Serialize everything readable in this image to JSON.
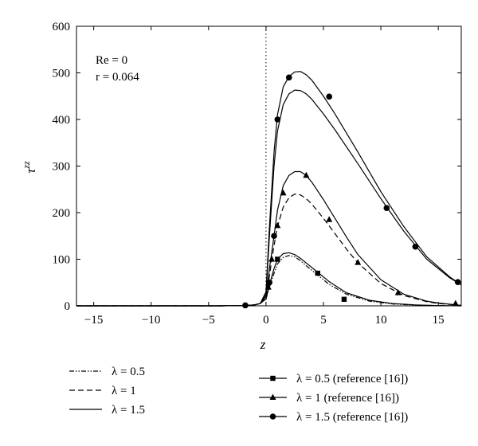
{
  "chart_data": {
    "type": "line",
    "xlabel": "z",
    "ylabel": "τ",
    "ylabel_superscript": "zz",
    "xlim": [
      -16.5,
      17
    ],
    "ylim": [
      0,
      600
    ],
    "xticks": [
      -15,
      -10,
      -5,
      0,
      5,
      10,
      15
    ],
    "yticks": [
      0,
      100,
      200,
      300,
      400,
      500,
      600
    ],
    "tick_labels_x": [
      "−15",
      "−10",
      "−5",
      "0",
      "5",
      "10",
      "15"
    ],
    "tick_labels_y": [
      "0",
      "100",
      "200",
      "300",
      "400",
      "500",
      "600"
    ],
    "vertical_reference_line": 0,
    "annotations": [
      "Re = 0",
      "r = 0.064"
    ],
    "legend_placement": "bottom",
    "series": [
      {
        "name": "λ = 0.5",
        "style": "dashdotdot",
        "marker": "none",
        "x": [
          -16.5,
          -4,
          -2,
          -1,
          -0.5,
          0,
          0.3,
          0.7,
          1,
          1.5,
          2,
          2.5,
          3,
          3.5,
          4.5,
          5.5,
          7,
          9,
          11,
          13,
          15,
          17
        ],
        "y": [
          0,
          0,
          0.5,
          2,
          5,
          15,
          40,
          70,
          90,
          104,
          108,
          105,
          97,
          86,
          66,
          46,
          25,
          10,
          4,
          1.5,
          0.5,
          0
        ]
      },
      {
        "name": "λ = 1",
        "style": "dashed",
        "marker": "none",
        "x": [
          -16.5,
          -4,
          -2,
          -1,
          -0.5,
          0,
          0.3,
          0.7,
          1,
          1.5,
          2,
          2.5,
          3,
          3.5,
          4,
          5,
          6,
          7,
          8,
          10,
          12,
          14,
          15,
          17
        ],
        "y": [
          0,
          0,
          0.5,
          2,
          5,
          18,
          65,
          130,
          170,
          212,
          232,
          240,
          238,
          230,
          218,
          188,
          155,
          122,
          92,
          48,
          22,
          9,
          5,
          1
        ]
      },
      {
        "name": "λ = 1.5",
        "style": "solid",
        "marker": "none",
        "x": [
          -16.5,
          -4,
          -2,
          -1,
          -0.5,
          0,
          0.3,
          0.7,
          1,
          1.5,
          2,
          2.5,
          3,
          3.5,
          4,
          5,
          6,
          8,
          10,
          12,
          14,
          16,
          17
        ],
        "y": [
          0,
          0,
          0.5,
          2,
          5,
          25,
          150,
          300,
          375,
          432,
          455,
          463,
          462,
          455,
          443,
          412,
          378,
          305,
          230,
          160,
          100,
          60,
          45
        ]
      },
      {
        "name": "λ = 0.5 (reference [16])",
        "style": "solid",
        "marker": "square",
        "x": [
          -16.5,
          -4,
          -2,
          -1,
          -0.5,
          0,
          0.3,
          0.7,
          1,
          1.5,
          2,
          2.5,
          3,
          3.5,
          4.5,
          5.5,
          7,
          9,
          11,
          13,
          15,
          17
        ],
        "y": [
          0,
          0,
          0.5,
          2,
          5,
          15,
          45,
          80,
          100,
          112,
          114,
          110,
          102,
          92,
          72,
          52,
          28,
          12,
          5,
          2,
          0.5,
          0
        ],
        "markers_x": [
          1,
          4.5,
          6.8
        ],
        "markers_y": [
          100,
          70,
          14
        ]
      },
      {
        "name": "λ = 1 (reference [16])",
        "style": "solid",
        "marker": "triangle",
        "x": [
          -16.5,
          -4,
          -2,
          -1,
          -0.5,
          0,
          0.3,
          0.7,
          1,
          1.5,
          2,
          2.5,
          3,
          3.5,
          4,
          5,
          6,
          7,
          8,
          10,
          12,
          14,
          15,
          17
        ],
        "y": [
          0,
          0,
          0.5,
          2,
          5,
          20,
          80,
          150,
          205,
          258,
          280,
          288,
          288,
          280,
          265,
          228,
          188,
          148,
          110,
          56,
          25,
          10,
          6,
          1
        ],
        "markers_x": [
          0.2,
          0.5,
          1,
          1.5,
          3.5,
          5.5,
          8,
          11.5,
          16.5
        ],
        "markers_y": [
          40,
          100,
          172,
          242,
          280,
          185,
          93,
          28,
          5
        ]
      },
      {
        "name": "λ = 1.5 (reference [16])",
        "style": "solid",
        "marker": "circle",
        "x": [
          -16.5,
          -4,
          -2,
          -1,
          -0.5,
          0,
          0.3,
          0.7,
          1,
          1.5,
          2,
          2.5,
          3,
          3.5,
          4,
          5,
          6,
          8,
          10,
          12,
          14,
          16,
          17
        ],
        "y": [
          0,
          0,
          0.5,
          2,
          5,
          30,
          170,
          330,
          410,
          470,
          492,
          502,
          503,
          496,
          484,
          450,
          412,
          330,
          245,
          170,
          105,
          62,
          45
        ],
        "markers_x": [
          -1.8,
          0.3,
          0.7,
          1,
          2,
          5.5,
          10.5,
          13,
          16.7
        ],
        "markers_y": [
          1,
          50,
          150,
          400,
          490,
          449,
          210,
          127,
          51
        ]
      }
    ]
  }
}
